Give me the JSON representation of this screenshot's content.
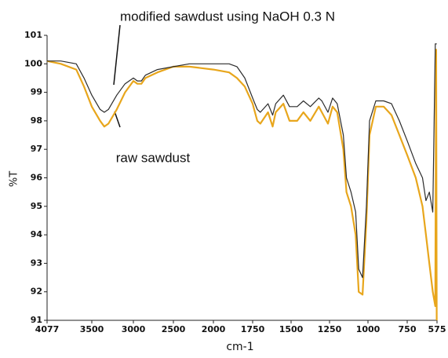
{
  "chart_data": {
    "type": "line",
    "annotations": [
      "modified sawdust using NaOH 0.3 N",
      "raw sawdust"
    ],
    "xlabel": "cm-1",
    "ylabel": "%T",
    "xlim": [
      4077,
      575
    ],
    "ylim": [
      91,
      101
    ],
    "xticks": [
      4077,
      3500,
      3000,
      2500,
      2000,
      1750,
      1500,
      1250,
      1000,
      750,
      575
    ],
    "yticks": [
      91,
      92,
      93,
      94,
      95,
      96,
      97,
      98,
      99,
      100,
      101
    ],
    "x": [
      4077,
      3900,
      3700,
      3600,
      3500,
      3400,
      3350,
      3300,
      3200,
      3100,
      3000,
      2950,
      2900,
      2850,
      2700,
      2500,
      2300,
      2000,
      1900,
      1850,
      1800,
      1750,
      1720,
      1700,
      1650,
      1620,
      1600,
      1550,
      1510,
      1460,
      1420,
      1375,
      1320,
      1300,
      1260,
      1230,
      1200,
      1160,
      1140,
      1110,
      1080,
      1060,
      1035,
      1010,
      990,
      950,
      900,
      850,
      800,
      750,
      700,
      660,
      640,
      620,
      600,
      585,
      580,
      577
    ],
    "series": [
      {
        "color": "#2b2b2b",
        "values": [
          100.1,
          100.1,
          100.0,
          99.5,
          98.9,
          98.4,
          98.3,
          98.4,
          98.9,
          99.3,
          99.5,
          99.4,
          99.4,
          99.6,
          99.8,
          99.9,
          100.0,
          100.0,
          100.0,
          99.9,
          99.5,
          98.8,
          98.4,
          98.3,
          98.6,
          98.2,
          98.6,
          98.9,
          98.5,
          98.5,
          98.7,
          98.5,
          98.8,
          98.7,
          98.3,
          98.8,
          98.6,
          97.5,
          96.0,
          95.5,
          94.8,
          92.8,
          92.5,
          95.0,
          98.0,
          98.7,
          98.7,
          98.6,
          98.0,
          97.3,
          96.5,
          96.0,
          95.2,
          95.5,
          94.8,
          100.7,
          100.7,
          100.7
        ]
      },
      {
        "color": "#e8a61c",
        "values": [
          100.1,
          100.0,
          99.8,
          99.2,
          98.5,
          98.0,
          97.8,
          97.9,
          98.4,
          99.0,
          99.4,
          99.3,
          99.3,
          99.5,
          99.7,
          99.9,
          99.9,
          99.8,
          99.7,
          99.5,
          99.2,
          98.6,
          98.0,
          97.9,
          98.3,
          97.8,
          98.3,
          98.6,
          98.0,
          98.0,
          98.3,
          98.0,
          98.5,
          98.3,
          97.9,
          98.5,
          98.3,
          97.0,
          95.5,
          95.0,
          94.0,
          92.0,
          91.9,
          94.5,
          97.5,
          98.5,
          98.5,
          98.2,
          97.5,
          96.8,
          96.0,
          95.0,
          94.0,
          93.0,
          92.0,
          91.5,
          100.5,
          91.0
        ]
      }
    ]
  }
}
